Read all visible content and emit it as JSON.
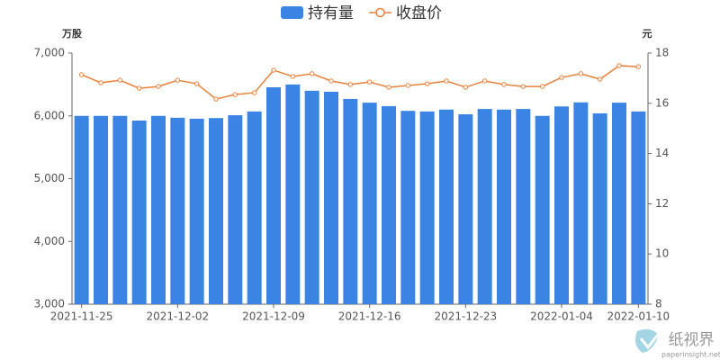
{
  "chart_data": {
    "type": "bar",
    "legend_position": "top",
    "y_axis_label": "万股",
    "y2_axis_label": "元",
    "categories": [
      "2021-11-25",
      null,
      null,
      null,
      null,
      "2021-12-02",
      null,
      null,
      null,
      null,
      "2021-12-09",
      null,
      null,
      null,
      null,
      "2021-12-16",
      null,
      null,
      null,
      null,
      "2021-12-23",
      null,
      null,
      null,
      null,
      "2022-01-04",
      null,
      null,
      null,
      "2022-01-10"
    ],
    "series": [
      {
        "name": "持有量",
        "type": "bar",
        "color": "#3b84e3",
        "values": [
          6000,
          6000,
          6000,
          5925,
          6000,
          5970,
          5955,
          5965,
          6010,
          6070,
          6455,
          6500,
          6400,
          6385,
          6270,
          6210,
          6155,
          6080,
          6070,
          6100,
          6025,
          6110,
          6100,
          6110,
          6000,
          6150,
          6215,
          6040,
          6210,
          6070
        ]
      },
      {
        "name": "收盘价",
        "type": "line",
        "axis": "y2",
        "color": "#e8813b",
        "values": [
          17.14,
          16.82,
          16.92,
          16.6,
          16.67,
          16.92,
          16.78,
          16.17,
          16.35,
          16.42,
          17.32,
          17.07,
          17.18,
          16.89,
          16.75,
          16.85,
          16.64,
          16.71,
          16.78,
          16.89,
          16.64,
          16.89,
          16.75,
          16.67,
          16.67,
          17.03,
          17.18,
          16.96,
          17.5,
          17.46
        ]
      }
    ],
    "ylim": [
      3000,
      7000
    ],
    "yticks": [
      {
        "value": 3000,
        "label": "3,000"
      },
      {
        "value": 4000,
        "label": "4,000"
      },
      {
        "value": 5000,
        "label": "5,000"
      },
      {
        "value": 6000,
        "label": "6,000"
      },
      {
        "value": 7000,
        "label": "7,000"
      }
    ],
    "y2lim": [
      8,
      18
    ],
    "y2ticks": [
      8,
      10,
      12,
      14,
      16,
      18
    ],
    "grid": false,
    "watermark": {
      "text": "纸视界",
      "url": "paperinsight.net"
    }
  }
}
